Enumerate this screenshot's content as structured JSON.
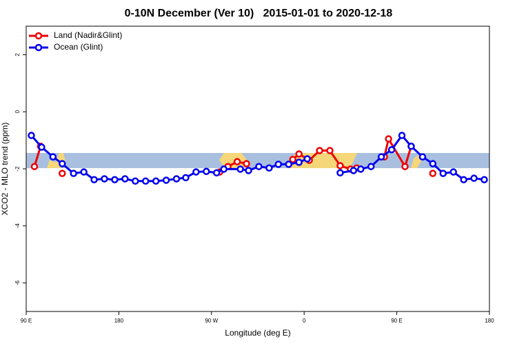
{
  "chart_data": {
    "type": "line",
    "title": "0-10N December (Ver 10)   2015-01-01 to 2020-12-18",
    "xlabel": "Longitude (deg E)",
    "ylabel": "XCO2 - MLO trend (ppm)",
    "xlim": [
      90,
      540
    ],
    "ylim": [
      -7,
      3
    ],
    "xticks": [
      {
        "value": 90,
        "label": "90 E"
      },
      180,
      {
        "value": 270,
        "label": "90 W"
      },
      {
        "value": 360,
        "label": "0"
      },
      {
        "value": 450,
        "label": "90 E"
      },
      180
    ],
    "yticks": [
      2,
      0,
      -2,
      -4,
      -6
    ],
    "legend": "top-left",
    "series": [
      {
        "name": "Land (Nadir&Glint)",
        "color": "#ee0000",
        "x": [
          98,
          104,
          115,
          125,
          200,
          278,
          286,
          295,
          304,
          330,
          349,
          355,
          365,
          375,
          385,
          395,
          405,
          411,
          425,
          438,
          442,
          458,
          464,
          475,
          485
        ],
        "values": [
          -1.92,
          -1.21,
          null,
          -2.16,
          null,
          -2.11,
          -1.92,
          -1.75,
          -1.82,
          null,
          -1.67,
          -1.48,
          -1.7,
          -1.36,
          -1.36,
          -1.89,
          -2.01,
          -1.97,
          null,
          -1.58,
          -0.95,
          -1.92,
          -1.21,
          null,
          -2.16
        ]
      },
      {
        "name": "Ocean (Glint)",
        "color": "#0000ee",
        "x": [
          95,
          105,
          116,
          125,
          136,
          146,
          156,
          166,
          176,
          186,
          196,
          206,
          216,
          226,
          236,
          245,
          255,
          265,
          275,
          282,
          298,
          306,
          316,
          326,
          335,
          345,
          355,
          363,
          380,
          395,
          408,
          415,
          425,
          435,
          445,
          455,
          464,
          475,
          485,
          495,
          505,
          515,
          525,
          535
        ],
        "values": [
          -0.83,
          -1.24,
          -1.58,
          -1.82,
          -2.16,
          -2.11,
          -2.38,
          -2.35,
          -2.38,
          -2.35,
          -2.43,
          -2.43,
          -2.43,
          -2.4,
          -2.35,
          -2.31,
          -2.11,
          -2.09,
          -2.14,
          -2.01,
          -2.01,
          -2.06,
          -1.92,
          -1.97,
          -1.84,
          -1.84,
          -1.77,
          -1.65,
          null,
          -2.14,
          -2.06,
          -2.01,
          -1.92,
          -1.58,
          -1.33,
          -0.83,
          -1.21,
          -1.58,
          -1.82,
          -2.16,
          -2.11,
          -2.38,
          -2.33,
          -2.38
        ]
      }
    ]
  }
}
